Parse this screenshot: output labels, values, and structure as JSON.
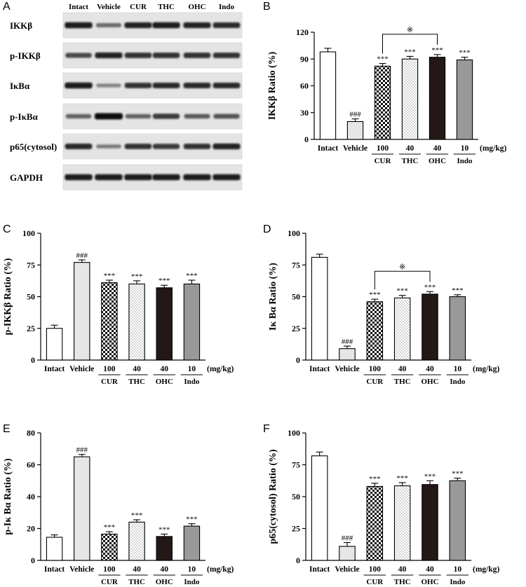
{
  "categories": [
    "Intact",
    "Vehicle",
    "100",
    "40",
    "40",
    "10"
  ],
  "doses": [
    "100",
    "40",
    "40",
    "10"
  ],
  "compounds": [
    "CUR",
    "THC",
    "OHC",
    "Indo"
  ],
  "unit": "(mg/kg)",
  "fills": [
    "#ffffff",
    "#e6e6e6",
    "checker",
    "dots",
    "#231815",
    "#999999"
  ],
  "blot": {
    "panel": "A",
    "columns": [
      "Intact",
      "Vehicle",
      "CUR",
      "THC",
      "OHC",
      "Indo"
    ],
    "rows": [
      "IKKβ",
      "p-IKKβ",
      "IκBα",
      "p-IκBα",
      "p65(cytosol)",
      "GAPDH"
    ],
    "intensity": [
      [
        0.9,
        0.4,
        0.85,
        0.9,
        0.85,
        0.8
      ],
      [
        0.6,
        0.85,
        0.75,
        0.75,
        0.75,
        0.75
      ],
      [
        0.9,
        0.25,
        0.75,
        0.8,
        0.8,
        0.8
      ],
      [
        0.45,
        1.0,
        0.45,
        0.7,
        0.5,
        0.55
      ],
      [
        0.8,
        0.3,
        0.75,
        0.7,
        0.75,
        0.85
      ],
      [
        0.9,
        0.9,
        0.9,
        0.9,
        0.9,
        0.9
      ]
    ]
  },
  "chart_data": [
    {
      "panel": "B",
      "type": "bar",
      "ylabel": "IKKβ  Ratio (%)",
      "ylim": [
        0,
        120
      ],
      "yticks": [
        0,
        30,
        60,
        90,
        120
      ],
      "values": [
        98,
        20,
        82,
        90,
        92,
        89
      ],
      "errors": [
        4,
        3,
        3,
        3,
        3,
        3
      ],
      "marks": [
        "",
        "###",
        "***",
        "***",
        "***",
        "***"
      ],
      "bracket": {
        "from": 2,
        "to": 4,
        "symbol": "※"
      }
    },
    {
      "panel": "C",
      "type": "bar",
      "ylabel": "p-IKKβ  Ratio (%)",
      "ylim": [
        0,
        100
      ],
      "yticks": [
        0,
        25,
        50,
        75,
        100
      ],
      "values": [
        25,
        77,
        61,
        60,
        57,
        60
      ],
      "errors": [
        2.5,
        2,
        2,
        2.5,
        2,
        3
      ],
      "marks": [
        "",
        "###",
        "***",
        "***",
        "***",
        "***"
      ]
    },
    {
      "panel": "D",
      "type": "bar",
      "ylabel": "Iκ Bα  Ratio (%)",
      "ylim": [
        0,
        100
      ],
      "yticks": [
        0,
        25,
        50,
        75,
        100
      ],
      "values": [
        81,
        9,
        46,
        49,
        52,
        50
      ],
      "errors": [
        2.5,
        2,
        2,
        2,
        2,
        1.5
      ],
      "marks": [
        "",
        "###",
        "***",
        "***",
        "***",
        "***"
      ],
      "bracket": {
        "from": 2,
        "to": 4,
        "symbol": "※"
      }
    },
    {
      "panel": "E",
      "type": "bar",
      "ylabel": "p-Iκ Bα  Ratio (%)",
      "ylim": [
        0,
        80
      ],
      "yticks": [
        0,
        20,
        40,
        60,
        80
      ],
      "values": [
        14.5,
        65,
        16.5,
        24,
        15,
        21.5
      ],
      "errors": [
        1.5,
        1.5,
        1.5,
        1.5,
        1.5,
        1.5
      ],
      "marks": [
        "",
        "###",
        "***",
        "***",
        "***",
        "***"
      ]
    },
    {
      "panel": "F",
      "type": "bar",
      "ylabel": "p65(cytosol) Ratio (%)",
      "ylim": [
        0,
        100
      ],
      "yticks": [
        0,
        25,
        50,
        75,
        100
      ],
      "values": [
        82,
        11,
        58,
        58.5,
        59.5,
        62.5
      ],
      "errors": [
        3,
        3,
        2.5,
        2.5,
        3,
        2
      ],
      "marks": [
        "",
        "###",
        "***",
        "***",
        "***",
        "***"
      ]
    }
  ]
}
